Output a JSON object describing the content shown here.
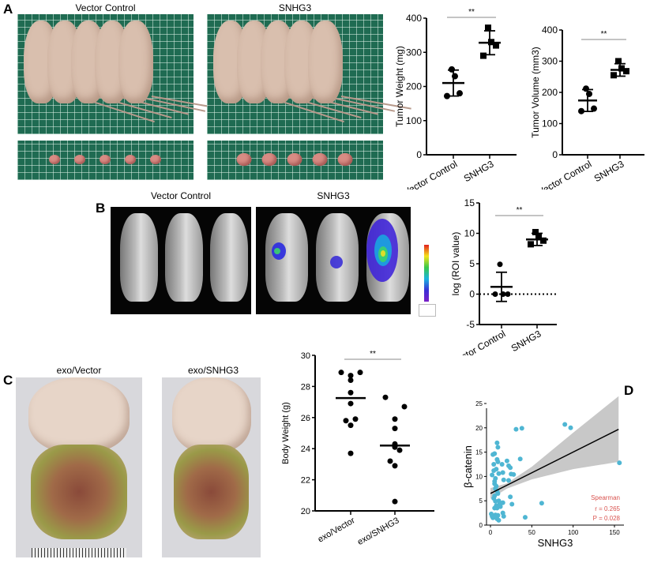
{
  "panels": {
    "A": {
      "label": "A",
      "photo_titles": [
        "Vector Control",
        "SNHG3"
      ]
    },
    "B": {
      "label": "B",
      "photo_titles": [
        "Vector Control",
        "SNHG3"
      ]
    },
    "C": {
      "label": "C",
      "photo_titles": [
        "exo/Vector",
        "exo/SNHG3"
      ]
    },
    "D": {
      "label": "D"
    }
  },
  "colors": {
    "dot": "#000000",
    "scatter": "#4fb6d3",
    "band": "#c8c8c8",
    "stat_text": "#d9534f"
  },
  "chart_data": [
    {
      "id": "tumor-weight",
      "type": "scatter",
      "panel": "A",
      "categories": [
        "Vector Control",
        "SNHG3"
      ],
      "series": [
        {
          "name": "Vector Control",
          "marker": "circle",
          "values": [
            250,
            230,
            180,
            172
          ],
          "mean": 210,
          "sd": 38
        },
        {
          "name": "SNHG3",
          "marker": "square",
          "values": [
            372,
            330,
            320,
            290
          ],
          "mean": 328,
          "sd": 35
        }
      ],
      "ylabel": "Tumor Weight (mg)",
      "ylim": [
        0,
        400
      ],
      "yticks": [
        "0",
        "100",
        "200",
        "300",
        "400"
      ],
      "significance": "**",
      "error_bars": true
    },
    {
      "id": "tumor-volume",
      "type": "scatter",
      "panel": "A",
      "categories": [
        "Vector Control",
        "SNHG3"
      ],
      "series": [
        {
          "name": "Vector Control",
          "marker": "circle",
          "values": [
            212,
            195,
            148,
            140
          ],
          "mean": 174,
          "sd": 35
        },
        {
          "name": "SNHG3",
          "marker": "square",
          "values": [
            300,
            277,
            268,
            255
          ],
          "mean": 272,
          "sd": 20
        }
      ],
      "ylabel": "Tumor Volume (mm3)",
      "ylim": [
        0,
        400
      ],
      "yticks": [
        "0",
        "100",
        "200",
        "300",
        "400"
      ],
      "significance": "**",
      "error_bars": true
    },
    {
      "id": "roi",
      "type": "scatter",
      "panel": "B",
      "categories": [
        "Vector Control",
        "SNHG3"
      ],
      "series": [
        {
          "name": "Vector Control",
          "marker": "circle",
          "values": [
            4.9,
            0,
            0,
            0
          ],
          "mean": 1.2,
          "sd": 2.4
        },
        {
          "name": "SNHG3",
          "marker": "square",
          "values": [
            10.2,
            9.5,
            8.8,
            8.2
          ],
          "mean": 9,
          "sd": 1
        }
      ],
      "ylabel": "log (ROI value)",
      "ylim": [
        -5,
        15
      ],
      "yticks": [
        "-5",
        "0",
        "5",
        "10",
        "15"
      ],
      "significance": "**",
      "error_bars": true,
      "reference_line": 0
    },
    {
      "id": "body-weight",
      "type": "scatter",
      "panel": "C",
      "categories": [
        "exo/Vector",
        "exo/SNHG3"
      ],
      "series": [
        {
          "name": "exo/Vector",
          "marker": "circle",
          "values": [
            28.9,
            28.9,
            28.7,
            28.4,
            27.6,
            26.9,
            25.9,
            25.8,
            25.5,
            23.7
          ],
          "mean": 27.25
        },
        {
          "name": "exo/SNHG3",
          "marker": "circle",
          "values": [
            27.3,
            26.7,
            25.9,
            25.3,
            24.3,
            24.1,
            23.9,
            23.2,
            22.9,
            20.6
          ],
          "mean": 24.2
        }
      ],
      "ylabel": "Body Weight (g)",
      "ylim": [
        20,
        30
      ],
      "yticks": [
        "20",
        "22",
        "24",
        "26",
        "28",
        "30"
      ],
      "significance": "**",
      "error_bars": false
    },
    {
      "id": "correlation",
      "type": "scatter",
      "panel": "D",
      "xlabel": "SNHG3",
      "ylabel": "β-catenin",
      "xlim": [
        -5,
        158
      ],
      "ylim": [
        0,
        27
      ],
      "xticks": [
        "0",
        "50",
        "100",
        "150"
      ],
      "yticks": [
        "0",
        "5",
        "10",
        "15",
        "20",
        "25"
      ],
      "points": [
        [
          1,
          2.3
        ],
        [
          2,
          1.8
        ],
        [
          3,
          1.5
        ],
        [
          4,
          12.5
        ],
        [
          3,
          14.5
        ],
        [
          5,
          14.7
        ],
        [
          2,
          10.3
        ],
        [
          4,
          11.2
        ],
        [
          5,
          8.5
        ],
        [
          6,
          7.5
        ],
        [
          5,
          6
        ],
        [
          4,
          5.5
        ],
        [
          6,
          4.9
        ],
        [
          7,
          4
        ],
        [
          5,
          3.5
        ],
        [
          8,
          3.5
        ],
        [
          6,
          2.1
        ],
        [
          7,
          1.6
        ],
        [
          8,
          1.3
        ],
        [
          10,
          1
        ],
        [
          9,
          2
        ],
        [
          8,
          16.9
        ],
        [
          9,
          16
        ],
        [
          8,
          13.5
        ],
        [
          9,
          13
        ],
        [
          7,
          11.5
        ],
        [
          10,
          10.6
        ],
        [
          6,
          9.6
        ],
        [
          5,
          9
        ],
        [
          7,
          8
        ],
        [
          8,
          7
        ],
        [
          9,
          6.5
        ],
        [
          10,
          5
        ],
        [
          11,
          4.3
        ],
        [
          12,
          3.8
        ],
        [
          13,
          4.5
        ],
        [
          15,
          4.6
        ],
        [
          15,
          2.5
        ],
        [
          16,
          1.8
        ],
        [
          14,
          12.5
        ],
        [
          15,
          10.8
        ],
        [
          16,
          9.3
        ],
        [
          20,
          13.2
        ],
        [
          22,
          12.2
        ],
        [
          24,
          11.8
        ],
        [
          25,
          10.5
        ],
        [
          28,
          10.4
        ],
        [
          22,
          9.2
        ],
        [
          24,
          5.8
        ],
        [
          26,
          4.3
        ],
        [
          31,
          19.7
        ],
        [
          38,
          19.9
        ],
        [
          36,
          13.6
        ],
        [
          42,
          1.6
        ],
        [
          62,
          4.5
        ],
        [
          90,
          20.7
        ],
        [
          97,
          20
        ],
        [
          156,
          12.8
        ]
      ],
      "fit_line": [
        [
          0,
          6.5
        ],
        [
          155,
          19.7
        ]
      ],
      "confidence_band": {
        "x": [
          0,
          20,
          50,
          100,
          155
        ],
        "upper": [
          7.6,
          8.6,
          12,
          19,
          26.5
        ],
        "lower": [
          5.4,
          7.5,
          9.4,
          11.5,
          13
        ]
      },
      "annotation": [
        "Spearman",
        "r = 0.265",
        "P = 0.028"
      ]
    }
  ]
}
